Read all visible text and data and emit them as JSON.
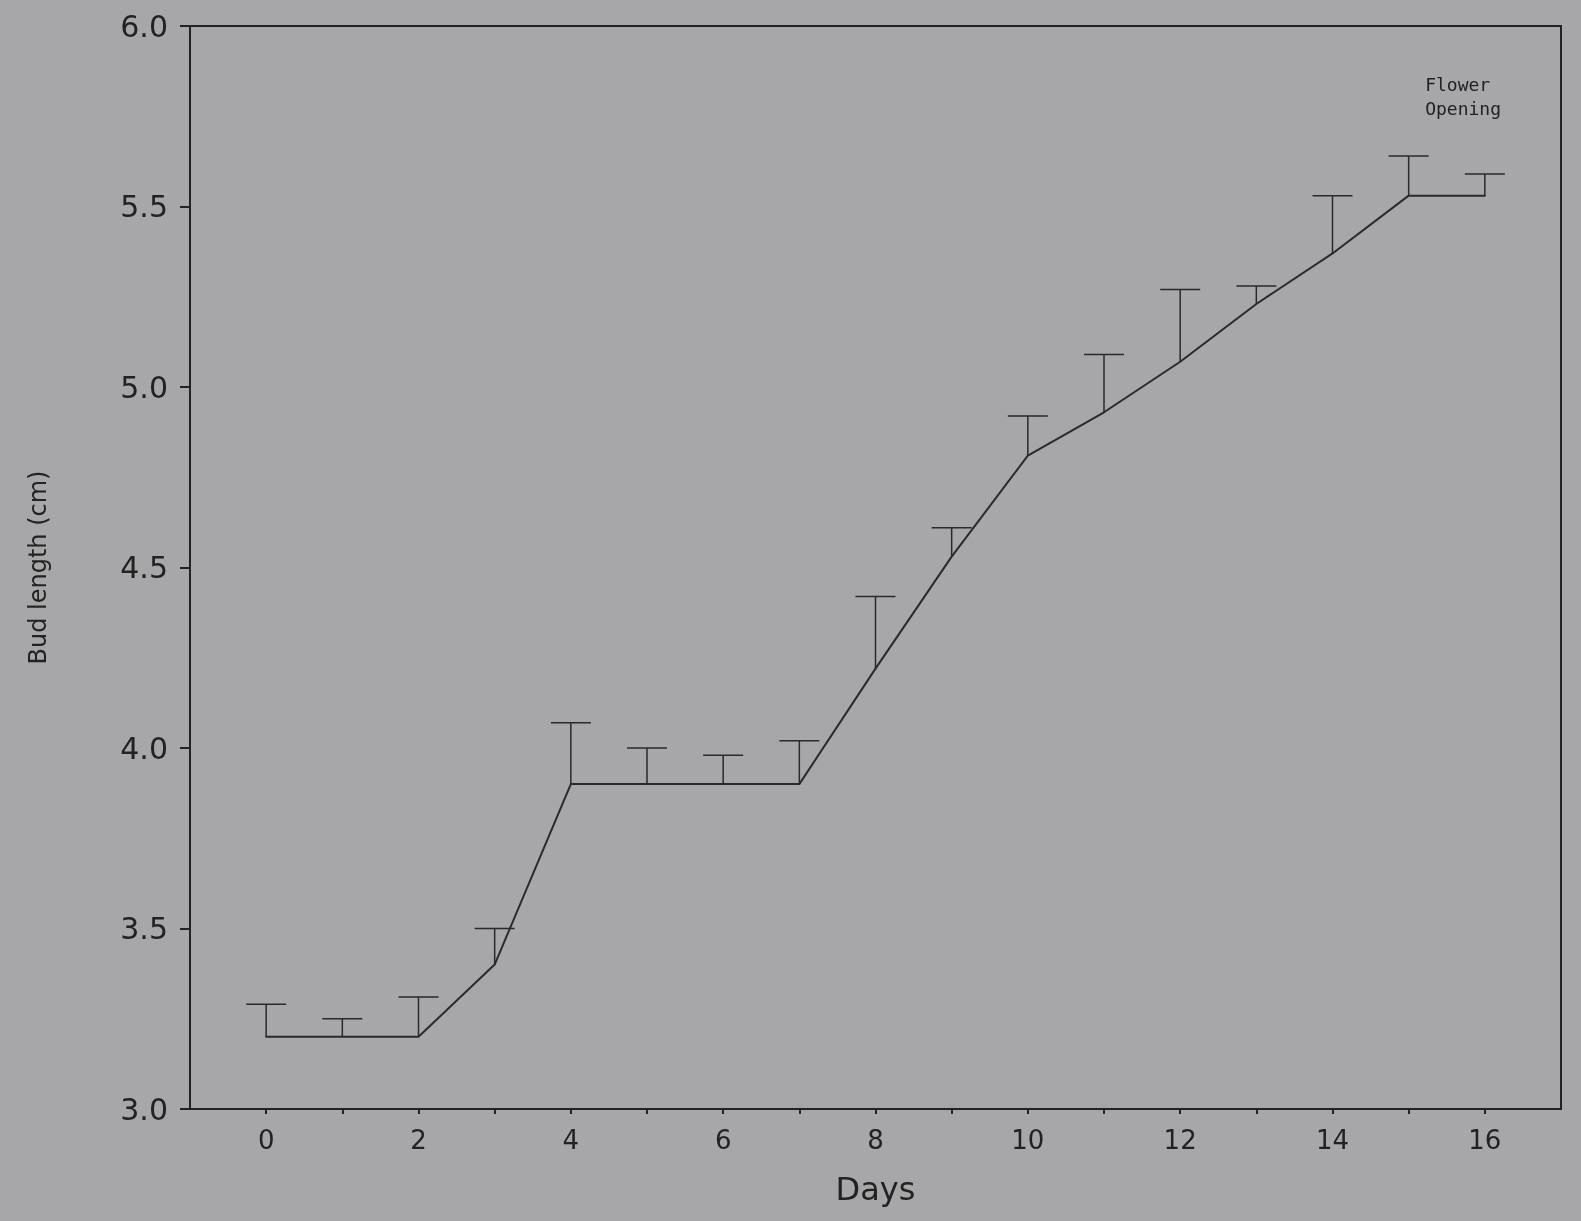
{
  "chart_data": {
    "type": "line",
    "xlabel": "Days",
    "ylabel": "Bud length (cm)",
    "x": [
      0,
      1,
      2,
      3,
      4,
      5,
      6,
      7,
      8,
      9,
      10,
      11,
      12,
      13,
      14,
      15,
      16
    ],
    "series": [
      {
        "color": "#2a2a2a",
        "values": [
          3.2,
          3.2,
          3.2,
          3.4,
          3.9,
          3.9,
          3.9,
          3.9,
          4.22,
          4.53,
          4.81,
          4.93,
          5.07,
          5.23,
          5.37,
          5.53,
          5.53
        ],
        "errors": [
          [
            3.2,
            3.29
          ],
          [
            3.2,
            3.25
          ],
          [
            3.2,
            3.31
          ],
          [
            3.4,
            3.5
          ],
          [
            3.9,
            4.07
          ],
          [
            3.9,
            4.0
          ],
          [
            3.9,
            3.98
          ],
          [
            3.9,
            4.02
          ],
          [
            4.22,
            4.42
          ],
          [
            4.53,
            4.61
          ],
          [
            4.81,
            4.92
          ],
          [
            4.93,
            5.09
          ],
          [
            5.07,
            5.27
          ],
          [
            5.23,
            5.28
          ],
          [
            5.37,
            5.53
          ],
          [
            5.53,
            5.64
          ],
          [
            5.53,
            5.59
          ]
        ]
      }
    ],
    "xlim": [
      -1,
      17
    ],
    "xticks": [
      0,
      {
        "value": 1,
        "label": null
      },
      2,
      {
        "value": 3,
        "label": null
      },
      4,
      {
        "value": 5,
        "label": null
      },
      6,
      {
        "value": 7,
        "label": null
      },
      8,
      {
        "value": 9,
        "label": null
      },
      10,
      {
        "value": 11,
        "label": null
      },
      12,
      {
        "value": 13,
        "label": null
      },
      14,
      {
        "value": 15,
        "label": null
      },
      16
    ],
    "ylim": [
      3,
      6
    ],
    "yticks": [
      {
        "value": 3,
        "label": "3.0"
      },
      {
        "value": 3.5,
        "label": "3.5"
      },
      {
        "value": 4,
        "label": "4.0"
      },
      {
        "value": 4.5,
        "label": "4.5"
      },
      {
        "value": 5,
        "label": "5.0"
      },
      {
        "value": 5.5,
        "label": "5.5"
      },
      {
        "value": 6,
        "label": "6.0"
      }
    ],
    "annotations": [
      "Flower\nOpening"
    ],
    "marker": "none",
    "line_style": "solid",
    "grid": false
  }
}
